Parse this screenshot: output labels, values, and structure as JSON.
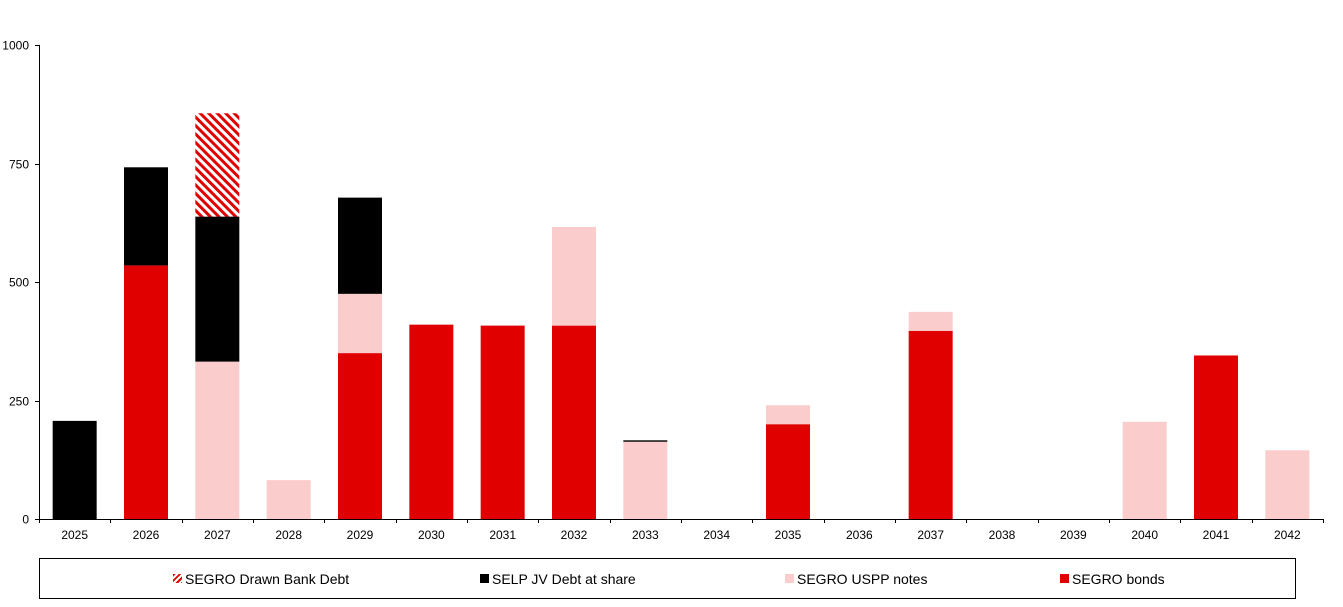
{
  "chart_data": {
    "type": "bar",
    "stacked": true,
    "categories": [
      "2025",
      "2026",
      "2027",
      "2028",
      "2029",
      "2030",
      "2031",
      "2032",
      "2033",
      "2034",
      "2035",
      "2036",
      "2037",
      "2038",
      "2039",
      "2040",
      "2041",
      "2042"
    ],
    "series": [
      {
        "name": "SEGRO bonds",
        "color": "#e00000",
        "pattern": "solid",
        "values": [
          0,
          535,
          0,
          0,
          350,
          410,
          408,
          408,
          0,
          0,
          200,
          0,
          397,
          0,
          0,
          0,
          345,
          0
        ]
      },
      {
        "name": "SEGRO USPP notes",
        "color": "#fbcccc",
        "pattern": "solid",
        "values": [
          0,
          0,
          332,
          82,
          125,
          0,
          0,
          208,
          163,
          0,
          40,
          0,
          40,
          0,
          0,
          205,
          0,
          145
        ]
      },
      {
        "name": "SELP JV Debt at share",
        "color": "#000000",
        "pattern": "solid",
        "values": [
          207,
          207,
          306,
          0,
          203,
          0,
          0,
          0,
          3,
          0,
          0,
          0,
          0,
          0,
          0,
          0,
          0,
          0
        ]
      },
      {
        "name": "SEGRO Drawn Bank Debt",
        "color": "#e00000",
        "pattern": "hatched",
        "values": [
          0,
          0,
          218,
          0,
          0,
          0,
          0,
          0,
          0,
          0,
          0,
          0,
          0,
          0,
          0,
          0,
          0,
          0
        ]
      }
    ],
    "yticks": [
      0,
      250,
      500,
      750,
      1000
    ],
    "ylim": [
      0,
      1000
    ],
    "grid": false,
    "legend": {
      "placement": "bottom",
      "order": [
        "SEGRO Drawn Bank Debt",
        "SELP JV Debt at share",
        "SEGRO USPP notes",
        "SEGRO bonds"
      ]
    }
  }
}
